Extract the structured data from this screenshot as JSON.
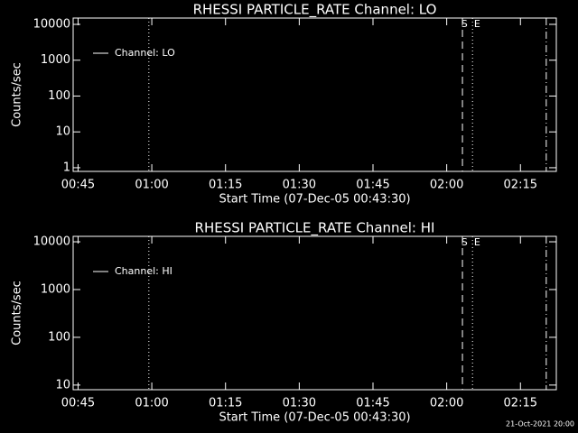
{
  "chart_data": [
    {
      "type": "line",
      "title": "RHESSI PARTICLE_RATE Channel: LO",
      "xlabel": "Start Time (07-Dec-05 00:43:30)",
      "ylabel": "Counts/sec",
      "x": [],
      "series": [
        {
          "name": "Channel: LO",
          "color": "#ffffff",
          "values": []
        }
      ],
      "log_y": true,
      "legend": "upper left",
      "xlim": [
        44,
        142.3
      ],
      "xticks": [
        {
          "value": 45,
          "label": "00:45"
        },
        {
          "value": 60,
          "label": "01:00"
        },
        {
          "value": 75,
          "label": "01:15"
        },
        {
          "value": 90,
          "label": "01:30"
        },
        {
          "value": 105,
          "label": "01:45"
        },
        {
          "value": 120,
          "label": "02:00"
        },
        {
          "value": 135,
          "label": "02:15"
        }
      ],
      "ylim": [
        0.79,
        15000
      ],
      "yticks": [
        1,
        10,
        100,
        1000,
        10000
      ],
      "vlines": [
        {
          "x": 59.4,
          "style": "dotted"
        },
        {
          "x": 123.2,
          "style": "dashed"
        },
        {
          "x": 125.25,
          "style": "dotted"
        },
        {
          "x": 140.25,
          "style": "dashdot"
        }
      ],
      "annotations": [
        {
          "text": "S",
          "x": 123.6
        },
        {
          "text": "E",
          "x": 126.2
        }
      ]
    },
    {
      "type": "line",
      "title": "RHESSI PARTICLE_RATE Channel: HI",
      "xlabel": "Start Time (07-Dec-05 00:43:30)",
      "ylabel": "Counts/sec",
      "x": [],
      "series": [
        {
          "name": "Channel: HI",
          "color": "#ffffff",
          "values": []
        }
      ],
      "log_y": true,
      "legend": "upper left",
      "xlim": [
        44,
        142.3
      ],
      "xticks": [
        {
          "value": 45,
          "label": "00:45"
        },
        {
          "value": 60,
          "label": "01:00"
        },
        {
          "value": 75,
          "label": "01:15"
        },
        {
          "value": 90,
          "label": "01:30"
        },
        {
          "value": 105,
          "label": "01:45"
        },
        {
          "value": 120,
          "label": "02:00"
        },
        {
          "value": 135,
          "label": "02:15"
        }
      ],
      "ylim": [
        8,
        13000
      ],
      "yticks": [
        10,
        100,
        1000,
        10000
      ],
      "vlines": [
        {
          "x": 59.4,
          "style": "dotted"
        },
        {
          "x": 123.2,
          "style": "dashed"
        },
        {
          "x": 125.25,
          "style": "dotted"
        },
        {
          "x": 140.25,
          "style": "dashdot"
        }
      ],
      "annotations": [
        {
          "text": "S",
          "x": 123.6
        },
        {
          "text": "E",
          "x": 126.2
        }
      ]
    }
  ],
  "footer": "21-Oct-2021 20:00"
}
